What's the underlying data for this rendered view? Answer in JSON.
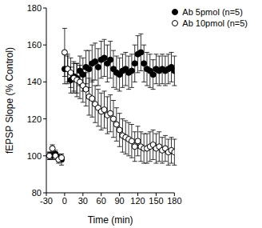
{
  "chart_data": {
    "type": "scatter",
    "x_label": "Time (min)",
    "y_label": "fEPSP Slope (% Control)",
    "xlim": [
      -30,
      180
    ],
    "xticks": [
      -30,
      0,
      30,
      60,
      90,
      120,
      150,
      180
    ],
    "ylim": [
      80,
      180
    ],
    "yticks": [
      80,
      100,
      120,
      140,
      160,
      180
    ],
    "legend": "top-right",
    "x": [
      -25,
      -20,
      -15,
      -10,
      -5,
      0,
      5,
      10,
      15,
      20,
      25,
      30,
      35,
      40,
      45,
      50,
      55,
      60,
      65,
      70,
      75,
      80,
      85,
      90,
      95,
      100,
      105,
      110,
      115,
      120,
      125,
      130,
      135,
      140,
      145,
      150,
      155,
      160,
      165,
      170,
      175,
      180
    ],
    "series": [
      {
        "name": "Ab 5pmol (n=5)",
        "color": "#000000",
        "marker": "filled",
        "values": [
          100,
          100,
          101,
          99,
          98,
          147,
          147,
          141,
          143,
          142,
          146,
          144,
          148,
          147,
          150,
          151,
          148,
          152,
          153,
          150,
          152,
          147,
          145,
          144,
          146,
          147,
          145,
          146,
          150,
          155,
          156,
          150,
          147,
          146,
          144,
          147,
          146,
          147,
          146,
          147,
          148,
          146
        ],
        "errors": [
          2,
          2,
          2,
          2,
          3,
          8,
          7,
          7,
          8,
          8,
          8,
          9,
          9,
          10,
          10,
          10,
          10,
          10,
          10,
          10,
          10,
          10,
          9,
          9,
          9,
          9,
          9,
          9,
          10,
          10,
          10,
          10,
          9,
          9,
          8,
          8,
          8,
          8,
          8,
          8,
          8,
          8
        ]
      },
      {
        "name": "Ab 10pmol (n=5)",
        "color": "#000000",
        "marker": "open",
        "values": [
          100,
          104,
          100,
          98,
          99,
          156,
          147,
          145,
          142,
          141,
          140,
          138,
          136,
          132,
          131,
          128,
          126,
          124,
          125,
          122,
          123,
          120,
          117,
          114,
          111,
          110,
          109,
          108,
          105,
          108,
          105,
          104,
          104,
          105,
          106,
          104,
          105,
          103,
          104,
          102,
          103,
          102
        ],
        "errors": [
          2,
          2,
          2,
          2,
          2,
          13,
          8,
          8,
          8,
          9,
          9,
          9,
          9,
          10,
          10,
          10,
          10,
          10,
          10,
          10,
          10,
          10,
          9,
          9,
          9,
          9,
          9,
          9,
          8,
          8,
          8,
          8,
          8,
          8,
          8,
          8,
          8,
          7,
          7,
          7,
          7,
          7
        ]
      }
    ]
  }
}
